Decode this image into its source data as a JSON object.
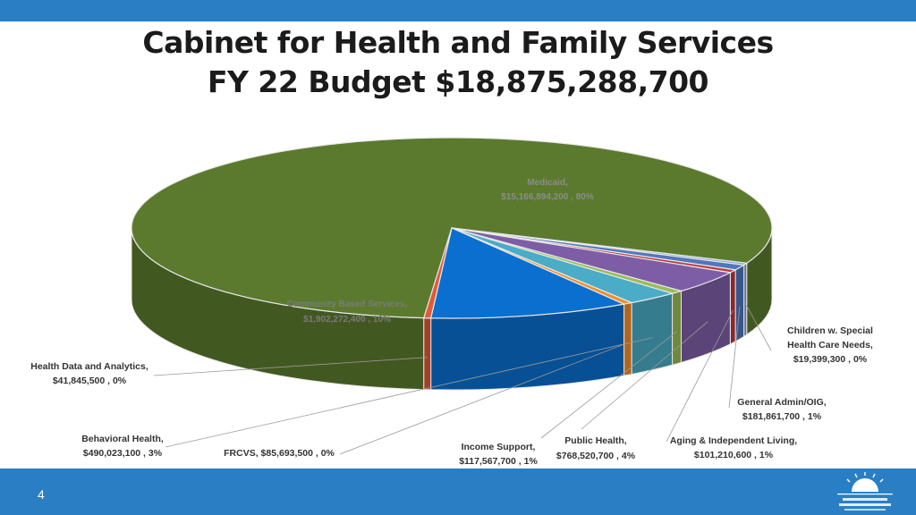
{
  "title_line1": "Cabinet for Health and Family Services",
  "title_line2": "FY 22 Budget $18,875,288,700",
  "page_number": "4",
  "colors": {
    "bar": "#2a7fc4"
  },
  "chart_data": {
    "type": "pie",
    "title": "Cabinet for Health and Family Services FY 22 Budget $18,875,288,700",
    "slices": [
      {
        "name": "Medicaid",
        "label_line1": "Medicaid,",
        "label_line2": "$15,166,894,200 , 80%",
        "value": 15166894200,
        "percent": 80,
        "color": "#5b7a2e"
      },
      {
        "name": "Children w. Special Health Care Needs",
        "label_line1": "Children w. Special",
        "label_line2": "Health Care Needs,",
        "label_line3": "$19,399,300 , 0%",
        "value": 19399300,
        "percent": 0,
        "color": "#8aa2cc"
      },
      {
        "name": "General Admin/OIG",
        "label_line1": "General Admin/OIG,",
        "label_line2": "$181,861,700 , 1%",
        "value": 181861700,
        "percent": 1,
        "color": "#4f78be"
      },
      {
        "name": "Aging & Independent Living",
        "label_line1": "Aging & Independent Living,",
        "label_line2": "$101,210,600 , 1%",
        "value": 101210600,
        "percent": 1,
        "color": "#c0393b"
      },
      {
        "name": "Public Health",
        "label_line1": "Public Health,",
        "label_line2": "$768,520,700 , 4%",
        "value": 768520700,
        "percent": 4,
        "color": "#7d5ea6"
      },
      {
        "name": "Income Support",
        "label_line1": "Income Support,",
        "label_line2": "$117,567,700 , 1%",
        "value": 117567700,
        "percent": 1,
        "color": "#9bbb59"
      },
      {
        "name": "Behavioral Health",
        "label_line1": "Behavioral Health,",
        "label_line2": "$490,023,100 , 3%",
        "value": 490023100,
        "percent": 3,
        "color": "#4aacc6"
      },
      {
        "name": "FRCVS",
        "label_line1": "FRCVS,  $85,693,500 , 0%",
        "value": 85693500,
        "percent": 0,
        "color": "#f28e2b"
      },
      {
        "name": "Community Based Services",
        "label_line1": "Community Based Services,",
        "label_line2": "$1,902,272,400 , 10%",
        "value": 1902272400,
        "percent": 10,
        "color": "#0a6fcf"
      },
      {
        "name": "Health Data and Analytics",
        "label_line1": "Health Data and Analytics,",
        "label_line2": "$41,845,500 , 0%",
        "value": 41845500,
        "percent": 0,
        "color": "#e05a3a"
      }
    ]
  }
}
